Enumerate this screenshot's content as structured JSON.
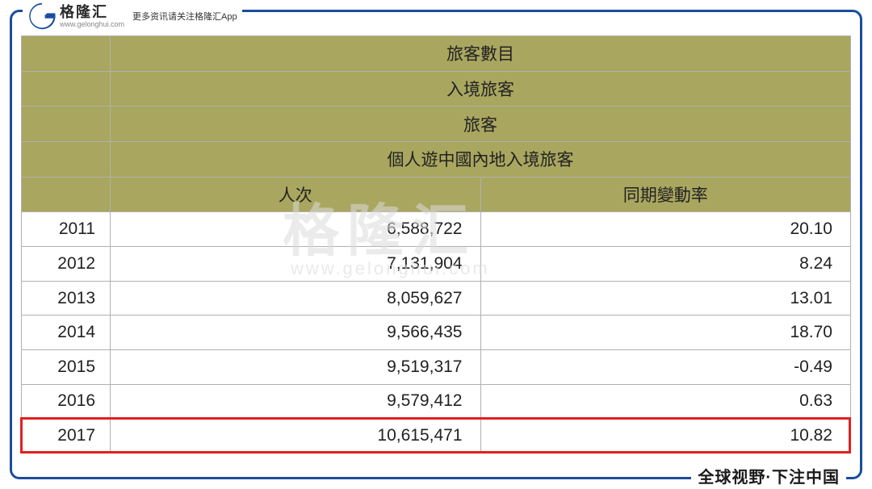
{
  "branding": {
    "logo_cn": "格隆汇",
    "logo_url": "www.gelonghui.com",
    "logo_tagline": "更多资讯请关注格隆汇App",
    "footer": "全球视野·下注中国",
    "watermark_text": "格隆汇",
    "watermark_url": "www.gelonghui.com"
  },
  "table": {
    "header_rows": [
      "旅客數目",
      "入境旅客",
      "旅客",
      "個人遊中國內地入境旅客"
    ],
    "col_headers": {
      "col2": "人次",
      "col3": "同期變動率"
    },
    "columns": [
      "year",
      "visits",
      "yoy"
    ],
    "rows": [
      {
        "year": "2011",
        "visits": "6,588,722",
        "yoy": "20.10"
      },
      {
        "year": "2012",
        "visits": "7,131,904",
        "yoy": "8.24"
      },
      {
        "year": "2013",
        "visits": "8,059,627",
        "yoy": "13.01"
      },
      {
        "year": "2014",
        "visits": "9,566,435",
        "yoy": "18.70"
      },
      {
        "year": "2015",
        "visits": "9,519,317",
        "yoy": "-0.49"
      },
      {
        "year": "2016",
        "visits": "9,579,412",
        "yoy": "0.63"
      },
      {
        "year": "2017",
        "visits": "10,615,471",
        "yoy": "10.82"
      }
    ],
    "highlight_row_index": 6
  },
  "style": {
    "header_bg": "#a9a65f",
    "border_color": "#b0b0b0",
    "frame_color": "#1a4d9e",
    "highlight_color": "#e02020",
    "text_color": "#222222",
    "background": "#ffffff",
    "font_size_body": 21,
    "font_size_footer": 20,
    "col_widths": {
      "year": 110
    }
  }
}
